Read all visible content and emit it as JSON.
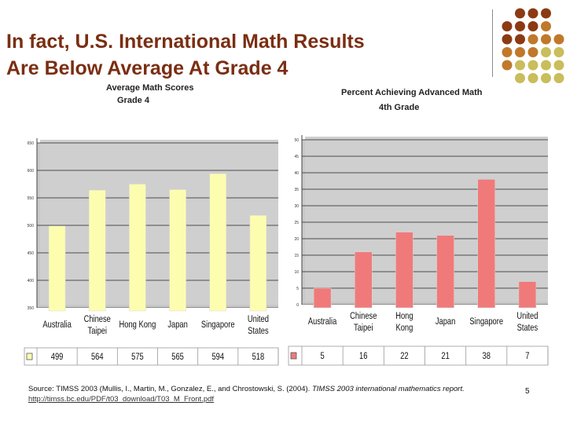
{
  "slide": {
    "title_line1": "In fact, U.S. International Math Results",
    "title_line2": "Are Below Average At Grade 4",
    "source_text": "Source: TIMSS 2003 (Mullis, I., Martin, M., Gonzalez, E., and Chrostowski, S. (2004). ",
    "source_italic": "TIMSS 2003 international mathematics report.",
    "source_url": "http://timss.bc.edu/PDF/t03_download/T03_M_Front.pdf",
    "page_number": "5",
    "colors": {
      "title": "#7a2e12",
      "dot_dark": "#8b3a13",
      "dot_mid": "#c0782a",
      "dot_light": "#c9bd5c",
      "bar_left": "#fdfdb0",
      "bar_right": "#f07a7a"
    }
  },
  "chart_data": [
    {
      "type": "bar",
      "title": "Average Math Scores",
      "subtitle": "Grade 4",
      "categories": [
        "Australia",
        "Chinese Taipei",
        "Hong Kong",
        "Japan",
        "Singapore",
        "United States"
      ],
      "category_lines": [
        [
          "Australia"
        ],
        [
          "Chinese",
          "Taipei"
        ],
        [
          "Hong Kong"
        ],
        [
          "Japan"
        ],
        [
          "Singapore"
        ],
        [
          "United",
          "States"
        ]
      ],
      "values": [
        499,
        564,
        575,
        565,
        594,
        518
      ],
      "value_labels": [
        "499",
        "564",
        "575",
        "565",
        "594",
        "518"
      ],
      "ylim": [
        350,
        650
      ],
      "yticks": [
        350,
        400,
        450,
        500,
        550,
        600,
        650
      ],
      "grid": true,
      "legend": "data table row beneath the categories",
      "color": "#fdfdb0"
    },
    {
      "type": "bar",
      "title": "Percent Achieving Advanced Math",
      "subtitle": "4th Grade",
      "categories": [
        "Australia",
        "Chinese Taipei",
        "Hong Kong",
        "Japan",
        "Singapore",
        "United States"
      ],
      "category_lines": [
        [
          "Australia"
        ],
        [
          "Chinese",
          "Taipei"
        ],
        [
          "Hong",
          "Kong"
        ],
        [
          "Japan"
        ],
        [
          "Singapore"
        ],
        [
          "United",
          "States"
        ]
      ],
      "values": [
        5,
        16,
        22,
        21,
        38,
        7
      ],
      "value_labels": [
        "5",
        "16",
        "22",
        "21",
        "38",
        "7"
      ],
      "ylim": [
        0,
        50
      ],
      "yticks": [
        0,
        5,
        10,
        15,
        20,
        25,
        30,
        35,
        40,
        45,
        50
      ],
      "grid": true,
      "legend": "data table row beneath the categories",
      "color": "#f07a7a"
    }
  ]
}
